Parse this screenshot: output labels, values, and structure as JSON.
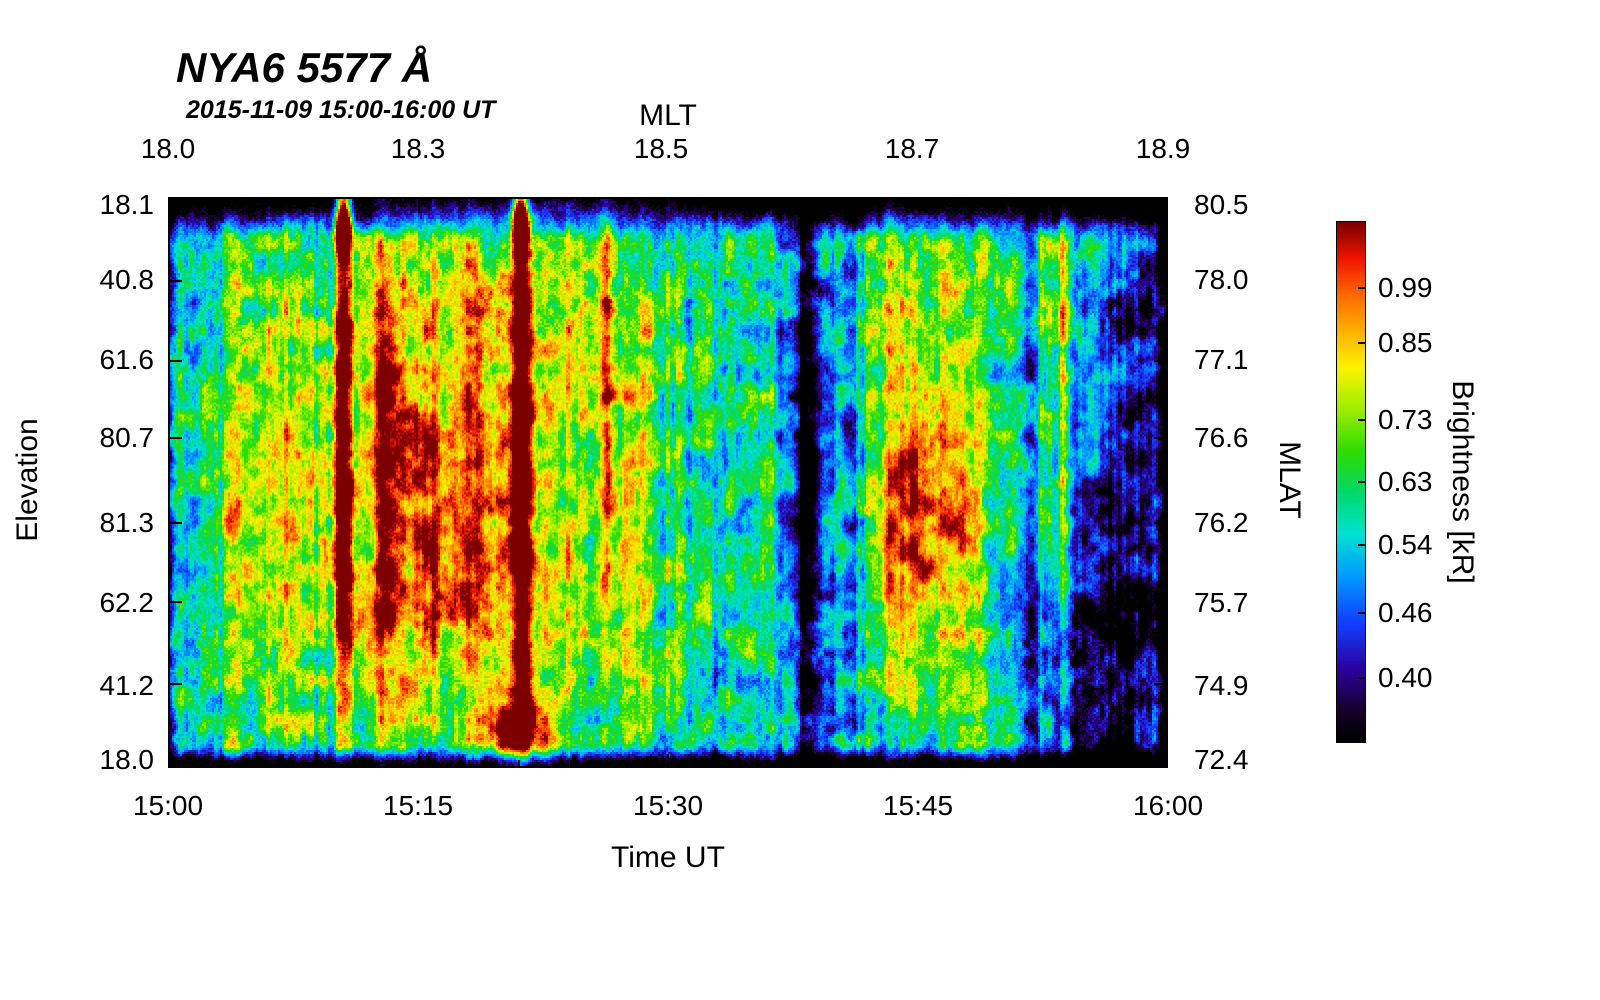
{
  "chart_data": {
    "type": "heatmap",
    "title": "NYA6 5577 Å",
    "subtitle": "2015-11-09 15:00-16:00 UT",
    "x_axis_bottom": {
      "label": "Time UT",
      "ticks": [
        {
          "label": "15:00",
          "pos": 0.0
        },
        {
          "label": "15:15",
          "pos": 0.25
        },
        {
          "label": "15:30",
          "pos": 0.5
        },
        {
          "label": "15:45",
          "pos": 0.75
        },
        {
          "label": "16:00",
          "pos": 1.0
        }
      ]
    },
    "x_axis_top": {
      "label": "MLT",
      "ticks": [
        {
          "label": "18.0",
          "pos": 0.0
        },
        {
          "label": "18.3",
          "pos": 0.25
        },
        {
          "label": "18.5",
          "pos": 0.493
        },
        {
          "label": "18.7",
          "pos": 0.744
        },
        {
          "label": "18.9",
          "pos": 0.995
        }
      ]
    },
    "y_axis_left": {
      "label": "Elevation",
      "ticks": [
        {
          "label": "18.1",
          "pos": 0.014
        },
        {
          "label": "40.8",
          "pos": 0.145
        },
        {
          "label": "61.6",
          "pos": 0.285
        },
        {
          "label": "80.7",
          "pos": 0.422
        },
        {
          "label": "81.3",
          "pos": 0.571
        },
        {
          "label": "62.2",
          "pos": 0.711
        },
        {
          "label": "41.2",
          "pos": 0.856
        },
        {
          "label": "18.0",
          "pos": 0.986
        }
      ]
    },
    "y_axis_right": {
      "label": "MLAT",
      "ticks": [
        {
          "label": "80.5",
          "pos": 0.014
        },
        {
          "label": "78.0",
          "pos": 0.145
        },
        {
          "label": "77.1",
          "pos": 0.285
        },
        {
          "label": "76.6",
          "pos": 0.422
        },
        {
          "label": "76.2",
          "pos": 0.571
        },
        {
          "label": "75.7",
          "pos": 0.711
        },
        {
          "label": "74.9",
          "pos": 0.856
        },
        {
          "label": "72.4",
          "pos": 0.986
        }
      ]
    },
    "colorbar": {
      "label": "Brightness [kR]",
      "ticks": [
        {
          "label": "0.99",
          "pos": 0.127
        },
        {
          "label": "0.85",
          "pos": 0.233
        },
        {
          "label": "0.73",
          "pos": 0.381
        },
        {
          "label": "0.63",
          "pos": 0.5
        },
        {
          "label": "0.54",
          "pos": 0.621
        },
        {
          "label": "0.46",
          "pos": 0.752
        },
        {
          "label": "0.40",
          "pos": 0.877
        }
      ]
    },
    "colormap": [
      {
        "v": 0.0,
        "c": "#000000"
      },
      {
        "v": 0.06,
        "c": "#14002a"
      },
      {
        "v": 0.14,
        "c": "#2b00a0"
      },
      {
        "v": 0.23,
        "c": "#1240ff"
      },
      {
        "v": 0.32,
        "c": "#009cff"
      },
      {
        "v": 0.4,
        "c": "#00e2d2"
      },
      {
        "v": 0.48,
        "c": "#00d96a"
      },
      {
        "v": 0.56,
        "c": "#2fdc00"
      },
      {
        "v": 0.64,
        "c": "#9cee00"
      },
      {
        "v": 0.72,
        "c": "#fdf300"
      },
      {
        "v": 0.79,
        "c": "#ffb000"
      },
      {
        "v": 0.86,
        "c": "#ff6a00"
      },
      {
        "v": 0.93,
        "c": "#ef1300"
      },
      {
        "v": 1.0,
        "c": "#7c0000"
      }
    ],
    "heatmap": {
      "texture": {
        "base": 0.3,
        "noise1_amp": 0.3,
        "noise2_amp": 0.22,
        "col_amp": 0.26,
        "col2_amp": 0.16,
        "white_noise": 0.12
      },
      "features": [
        {
          "x": 0.28,
          "y": 0.42,
          "sx": 0.075,
          "sy": 0.26,
          "amp": 0.42
        },
        {
          "x": 0.3,
          "y": 0.72,
          "sx": 0.09,
          "sy": 0.16,
          "amp": 0.22
        },
        {
          "x": 0.175,
          "y": 0.4,
          "sx": 0.006,
          "sy": 0.42,
          "amp": 0.6
        },
        {
          "x": 0.175,
          "y": 0.02,
          "sx": 0.005,
          "sy": 0.04,
          "amp": 2.0
        },
        {
          "x": 0.218,
          "y": 0.45,
          "sx": 0.01,
          "sy": 0.38,
          "amp": 0.35
        },
        {
          "x": 0.352,
          "y": 0.45,
          "sx": 0.007,
          "sy": 0.5,
          "amp": 0.6
        },
        {
          "x": 0.352,
          "y": 0.02,
          "sx": 0.005,
          "sy": 0.04,
          "amp": 2.0
        },
        {
          "x": 0.352,
          "y": 0.94,
          "sx": 0.025,
          "sy": 0.05,
          "amp": 0.55
        },
        {
          "x": 0.41,
          "y": 0.22,
          "sx": 0.05,
          "sy": 0.16,
          "amp": 0.2
        },
        {
          "x": 0.47,
          "y": 0.55,
          "sx": 0.03,
          "sy": 0.3,
          "amp": 0.12
        },
        {
          "x": 0.512,
          "y": 0.5,
          "sx": 0.004,
          "sy": 0.5,
          "amp": 0.22
        },
        {
          "x": 0.44,
          "y": 0.3,
          "sx": 0.004,
          "sy": 0.3,
          "amp": 0.2
        },
        {
          "x": 0.755,
          "y": 0.55,
          "sx": 0.022,
          "sy": 0.2,
          "amp": 0.52
        },
        {
          "x": 0.718,
          "y": 0.45,
          "sx": 0.012,
          "sy": 0.3,
          "amp": 0.25
        },
        {
          "x": 0.8,
          "y": 0.55,
          "sx": 0.014,
          "sy": 0.24,
          "amp": 0.32
        },
        {
          "x": 0.76,
          "y": 0.12,
          "sx": 0.035,
          "sy": 0.1,
          "amp": 0.18
        },
        {
          "x": 0.115,
          "y": 0.5,
          "sx": 0.03,
          "sy": 0.32,
          "amp": 0.2
        },
        {
          "x": 0.07,
          "y": 0.55,
          "sx": 0.015,
          "sy": 0.3,
          "amp": 0.15
        },
        {
          "x": 0.36,
          "y": 0.01,
          "sx": 0.08,
          "sy": 0.02,
          "amp": 0.35
        },
        {
          "x": 0.895,
          "y": 0.35,
          "sx": 0.004,
          "sy": 0.35,
          "amp": 0.3
        },
        {
          "x": 0.638,
          "y": 0.5,
          "sx": 0.012,
          "sy": 0.5,
          "amp": -0.45
        },
        {
          "x": 0.662,
          "y": 0.5,
          "sx": 0.03,
          "sy": 0.5,
          "amp": -0.15
        },
        {
          "x": 0.93,
          "y": 0.82,
          "sx": 0.055,
          "sy": 0.22,
          "amp": -0.35
        },
        {
          "x": 0.975,
          "y": 0.3,
          "sx": 0.035,
          "sy": 0.4,
          "amp": -0.2
        }
      ]
    }
  }
}
